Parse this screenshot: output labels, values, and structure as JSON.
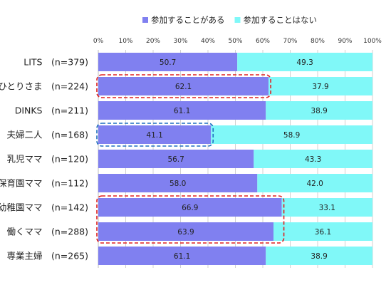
{
  "chart_data": {
    "type": "bar",
    "orientation": "horizontal",
    "stacked": "percent",
    "categories": [
      "LITS　(n=379)",
      "おひとりさま　(n=224)",
      "DINKS　(n=211)",
      "夫婦二人　(n=168)",
      "乳児ママ　(n=120)",
      "保育園ママ　(n=112)",
      "幼稚園ママ　(n=142)",
      "働くママ　(n=288)",
      "専業主婦　(n=265)"
    ],
    "series": [
      {
        "name": "参加することがある",
        "values": [
          50.7,
          62.1,
          61.1,
          41.1,
          56.7,
          58.0,
          66.9,
          63.9,
          61.1
        ],
        "labels": [
          "50.7",
          "62.1",
          "61.1",
          "41.1",
          "56.7",
          "58.0",
          "66.9",
          "63.9",
          "61.1"
        ]
      },
      {
        "name": "参加することはない",
        "values": [
          49.3,
          37.9,
          38.9,
          58.9,
          43.3,
          42.0,
          33.1,
          36.1,
          38.9
        ],
        "labels": [
          "49.3",
          "37.9",
          "38.9",
          "58.9",
          "43.3",
          "42.0",
          "33.1",
          "36.1",
          "38.9"
        ]
      }
    ],
    "xlim": [
      0,
      100
    ],
    "ticks": [
      "0%",
      "10%",
      "20%",
      "30%",
      "40%",
      "50%",
      "60%",
      "70%",
      "80%",
      "90%",
      "100%"
    ],
    "legend": "top",
    "grid": true,
    "colors": {
      "series1": "#8080f0",
      "series2": "#80f8f8",
      "highlight_red": "#e02020",
      "highlight_blue": "#1f6fc0",
      "grid": "#d0d0d0"
    },
    "highlights": [
      {
        "color": "red",
        "rows": [
          1
        ],
        "extent": 62.1
      },
      {
        "color": "blue",
        "rows": [
          3
        ],
        "extent": 41.1
      },
      {
        "color": "red",
        "rows": [
          6,
          7
        ],
        "extent": 66.9
      }
    ]
  }
}
